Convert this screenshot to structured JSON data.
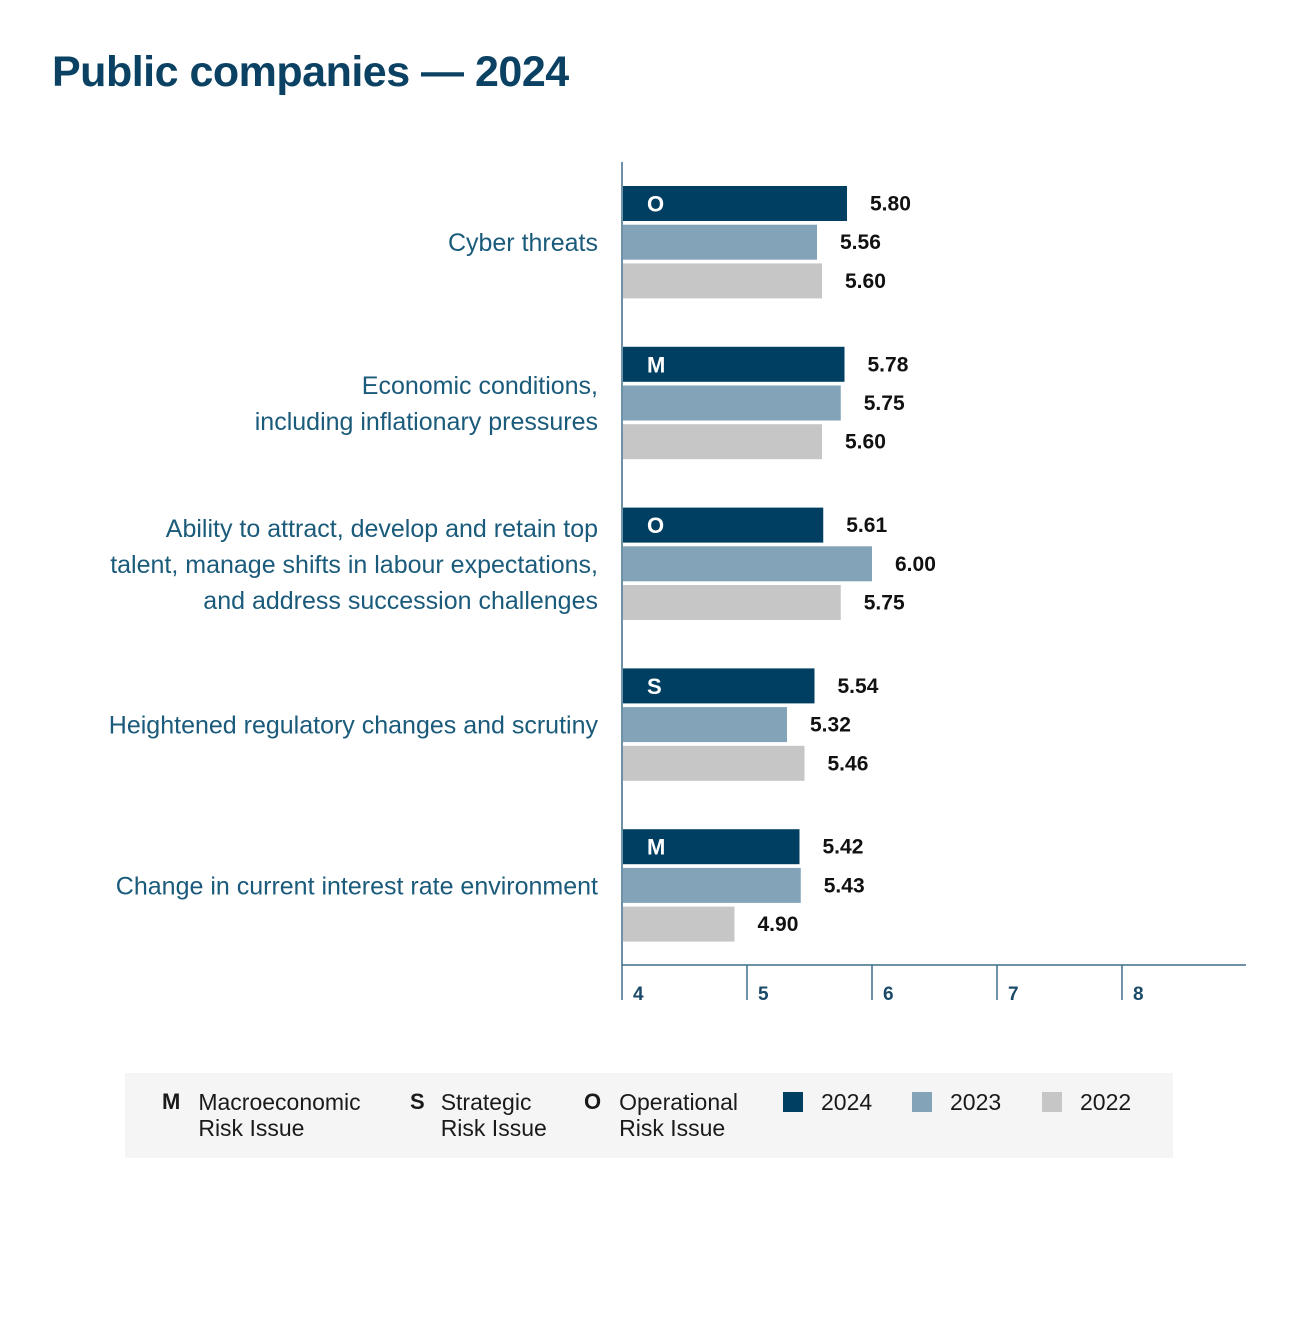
{
  "chart_data": {
    "type": "bar",
    "orientation": "horizontal",
    "title": "Public companies — 2024",
    "categories": [
      {
        "label_lines": [
          "Cyber threats"
        ],
        "risk_code": "O"
      },
      {
        "label_lines": [
          "Economic conditions,",
          "including inflationary pressures"
        ],
        "risk_code": "M"
      },
      {
        "label_lines": [
          "Ability to attract, develop and retain top",
          "talent, manage shifts in labour expectations,",
          "and address succession challenges"
        ],
        "risk_code": "O"
      },
      {
        "label_lines": [
          "Heightened regulatory changes and scrutiny"
        ],
        "risk_code": "S"
      },
      {
        "label_lines": [
          "Change in current interest rate environment"
        ],
        "risk_code": "M"
      }
    ],
    "series": [
      {
        "name": "2024",
        "color": "#003f62",
        "values": [
          5.8,
          5.78,
          5.61,
          5.54,
          5.42
        ],
        "value_labels": [
          "5.80",
          "5.78",
          "5.61",
          "5.54",
          "5.42"
        ]
      },
      {
        "name": "2023",
        "color": "#82a3b8",
        "values": [
          5.56,
          5.75,
          6.0,
          5.32,
          5.43
        ],
        "value_labels": [
          "5.56",
          "5.75",
          "6.00",
          "5.32",
          "5.43"
        ]
      },
      {
        "name": "2022",
        "color": "#c6c6c6",
        "values": [
          5.6,
          5.6,
          5.75,
          5.46,
          4.9
        ],
        "value_labels": [
          "5.60",
          "5.60",
          "5.75",
          "5.46",
          "4.90"
        ]
      }
    ],
    "xlim": [
      4,
      9
    ],
    "xticks": [
      "4",
      "5",
      "6",
      "7",
      "8"
    ],
    "grid": false,
    "legend_position": "bottom"
  },
  "legend": {
    "risk_types": [
      {
        "code": "M",
        "lines": [
          "Macroeconomic",
          "Risk Issue"
        ]
      },
      {
        "code": "S",
        "lines": [
          "Strategic",
          "Risk Issue"
        ]
      },
      {
        "code": "O",
        "lines": [
          "Operational",
          "Risk Issue"
        ]
      }
    ],
    "years": [
      {
        "label": "2024",
        "color": "#003f62"
      },
      {
        "label": "2023",
        "color": "#82a3b8"
      },
      {
        "label": "2022",
        "color": "#c6c6c6"
      }
    ]
  },
  "colors": {
    "title": "#0b4263",
    "category_label": "#1a5a7a",
    "axis": "#3d6e8a",
    "tick_label": "#1a4a68",
    "value_label": "#111111",
    "code_label": "#ffffff"
  }
}
